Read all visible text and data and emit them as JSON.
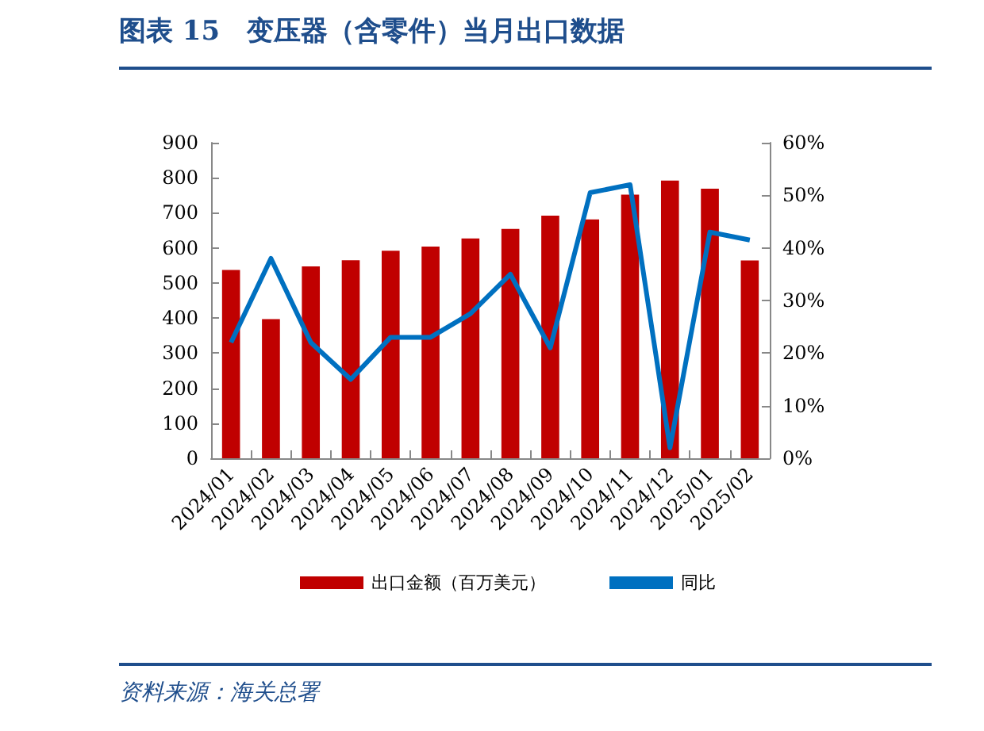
{
  "chart_data": {
    "type": "bar",
    "title": "图表 15　变压器（含零件）当月出口数据",
    "annotations": [
      "资料来源：海关总署"
    ],
    "categories": [
      "2024/01",
      "2024/02",
      "2024/03",
      "2024/04",
      "2024/05",
      "2024/06",
      "2024/07",
      "2024/08",
      "2024/09",
      "2024/10",
      "2024/11",
      "2024/12",
      "2025/01",
      "2025/02"
    ],
    "series": [
      {
        "name": "出口金额（百万美元）",
        "color": "#c00000",
        "values": [
          537,
          397,
          547,
          565,
          592,
          604,
          627,
          654,
          692,
          681,
          752,
          792,
          769,
          564
        ]
      },
      {
        "name": "同比",
        "type": "line",
        "axis": "y2",
        "color": "#0070c0",
        "marker": "none",
        "values": [
          22,
          38,
          22,
          15,
          23,
          23,
          27.5,
          35,
          21,
          50.5,
          52,
          2,
          43,
          41.5
        ]
      }
    ],
    "ylim": [
      0,
      900
    ],
    "yticks": [
      0,
      100,
      200,
      300,
      400,
      500,
      600,
      700,
      800,
      900
    ],
    "y2lim": [
      0,
      60
    ],
    "y2ticks": [
      {
        "value": 0,
        "label": "0%"
      },
      {
        "value": 10,
        "label": "10%"
      },
      {
        "value": 20,
        "label": "20%"
      },
      {
        "value": 30,
        "label": "30%"
      },
      {
        "value": 40,
        "label": "40%"
      },
      {
        "value": 50,
        "label": "50%"
      },
      {
        "value": 60,
        "label": "60%"
      }
    ],
    "grid": false,
    "legend": "bottom"
  }
}
